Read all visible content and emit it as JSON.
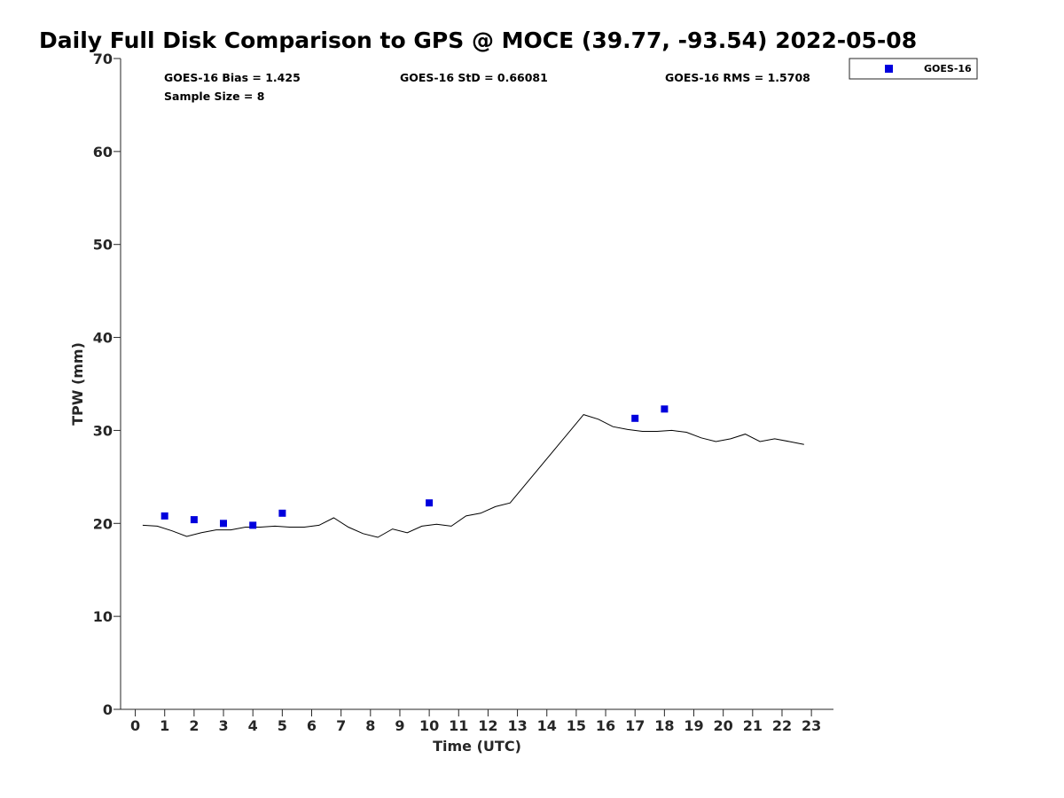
{
  "chart_data": {
    "type": "scatter",
    "title": "Daily Full Disk Comparison to GPS @ MOCE (39.77, -93.54) 2022-05-08",
    "xlabel": "Time (UTC)",
    "ylabel": "TPW (mm)",
    "xlim": [
      -0.5,
      23.75
    ],
    "ylim": [
      0,
      70
    ],
    "x_ticks": [
      "0",
      "1",
      "2",
      "3",
      "4",
      "5",
      "6",
      "7",
      "8",
      "9",
      "10",
      "11",
      "12",
      "13",
      "14",
      "15",
      "16",
      "17",
      "18",
      "19",
      "20",
      "21",
      "22",
      "23"
    ],
    "y_ticks": [
      "0",
      "10",
      "20",
      "30",
      "40",
      "50",
      "60",
      "70"
    ],
    "grid": false,
    "legend": {
      "position": "outside-top-right",
      "entries": [
        "GOES-16"
      ]
    },
    "stats": {
      "bias": "GOES-16 Bias = 1.425",
      "std": "GOES-16 StD = 0.66081",
      "rms": "GOES-16 RMS = 1.5708",
      "sample": "Sample Size = 8"
    },
    "series": [
      {
        "name": "GOES-16",
        "kind": "markers",
        "color": "#0000dd",
        "x": [
          1,
          2,
          3,
          4,
          5,
          10,
          17,
          18
        ],
        "y": [
          20.8,
          20.4,
          20.0,
          19.8,
          21.1,
          22.2,
          31.3,
          32.3
        ]
      },
      {
        "name": "GPS",
        "kind": "line",
        "color": "#000000",
        "x": [
          0.25,
          0.75,
          1.25,
          1.75,
          2.25,
          2.75,
          3.25,
          3.75,
          4.25,
          4.75,
          5.25,
          5.75,
          6.25,
          6.75,
          7.25,
          7.75,
          8.25,
          8.75,
          9.25,
          9.75,
          10.25,
          10.75,
          11.25,
          11.75,
          12.25,
          12.75,
          15.25,
          15.75,
          16.25,
          16.75,
          17.25,
          17.75,
          18.25,
          18.75,
          19.25,
          19.75,
          20.25,
          20.75,
          21.25,
          21.75,
          22.25,
          22.75
        ],
        "y": [
          19.8,
          19.7,
          19.2,
          18.6,
          19.0,
          19.3,
          19.3,
          19.6,
          19.6,
          19.7,
          19.6,
          19.6,
          19.8,
          20.6,
          19.6,
          18.9,
          18.5,
          19.4,
          19.0,
          19.7,
          19.9,
          19.7,
          20.8,
          21.1,
          21.8,
          22.2,
          31.7,
          31.2,
          30.4,
          30.1,
          29.9,
          29.9,
          30.0,
          29.8,
          29.2,
          28.8,
          29.1,
          29.6,
          28.8,
          29.1,
          28.8,
          28.5
        ]
      }
    ]
  }
}
